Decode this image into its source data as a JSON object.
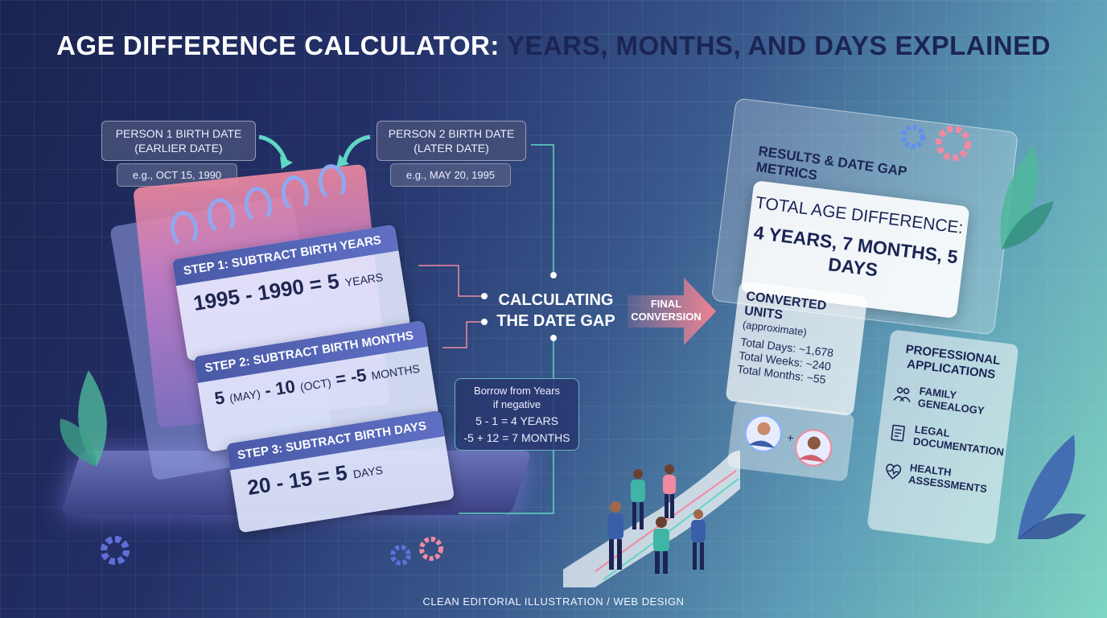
{
  "title": {
    "part1": "AGE DIFFERENCE CALCULATOR:",
    "part2": "YEARS, MONTHS, AND DAYS EXPLAINED"
  },
  "person1": {
    "label_line1": "PERSON 1 BIRTH DATE",
    "label_line2": "(EARLIER DATE)",
    "example": "e.g., OCT 15, 1990"
  },
  "person2": {
    "label_line1": "PERSON 2 BIRTH DATE",
    "label_line2": "(LATER DATE)",
    "example": "e.g., MAY 20, 1995"
  },
  "steps": [
    {
      "title": "STEP 1: SUBTRACT BIRTH YEARS",
      "expr": "1995 - 1990 = 5",
      "unit": "YEARS"
    },
    {
      "title": "STEP 2: SUBTRACT BIRTH MONTHS",
      "expr_a": "5",
      "note_a": "(MAY)",
      "expr_b": "- 10",
      "note_b": "(OCT)",
      "expr_c": "= -5",
      "unit": "MONTHS"
    },
    {
      "title": "STEP 3: SUBTRACT BIRTH DAYS",
      "expr": "20 - 15 = 5",
      "unit": "DAYS"
    }
  ],
  "center": {
    "line1": "CALCULATING",
    "line2": "THE DATE GAP"
  },
  "borrow": {
    "line1": "Borrow from Years",
    "line2": "if negative",
    "calc1": "5 - 1 = 4 YEARS",
    "calc2": "-5 + 12 = 7 MONTHS"
  },
  "arrow": {
    "line1": "FINAL",
    "line2": "CONVERSION"
  },
  "results": {
    "title": "RESULTS & DATE GAP METRICS",
    "label": "TOTAL AGE DIFFERENCE:",
    "value_line1": "4 YEARS, 7 MONTHS, 5 DAYS"
  },
  "converted": {
    "title": "CONVERTED UNITS",
    "subtitle": "(approximate)",
    "days": "Total Days: ~1,678",
    "weeks": "Total Weeks: ~240",
    "months": "Total Months: ~55"
  },
  "professional": {
    "title_line1": "PROFESSIONAL",
    "title_line2": "APPLICATIONS",
    "items": [
      {
        "line1": "FAMILY",
        "line2": "GENEALOGY",
        "icon": "family-icon"
      },
      {
        "line1": "LEGAL",
        "line2": "DOCUMENTATION",
        "icon": "document-icon"
      },
      {
        "line1": "HEALTH",
        "line2": "ASSESSMENTS",
        "icon": "heart-pulse-icon"
      }
    ]
  },
  "footer": "CLEAN EDITORIAL ILLUSTRATION / WEB DESIGN",
  "colors": {
    "navy": "#1b2554",
    "teal": "#7fd6c2",
    "pink": "#f08aa0",
    "accent_arrow": "#f0808e"
  }
}
